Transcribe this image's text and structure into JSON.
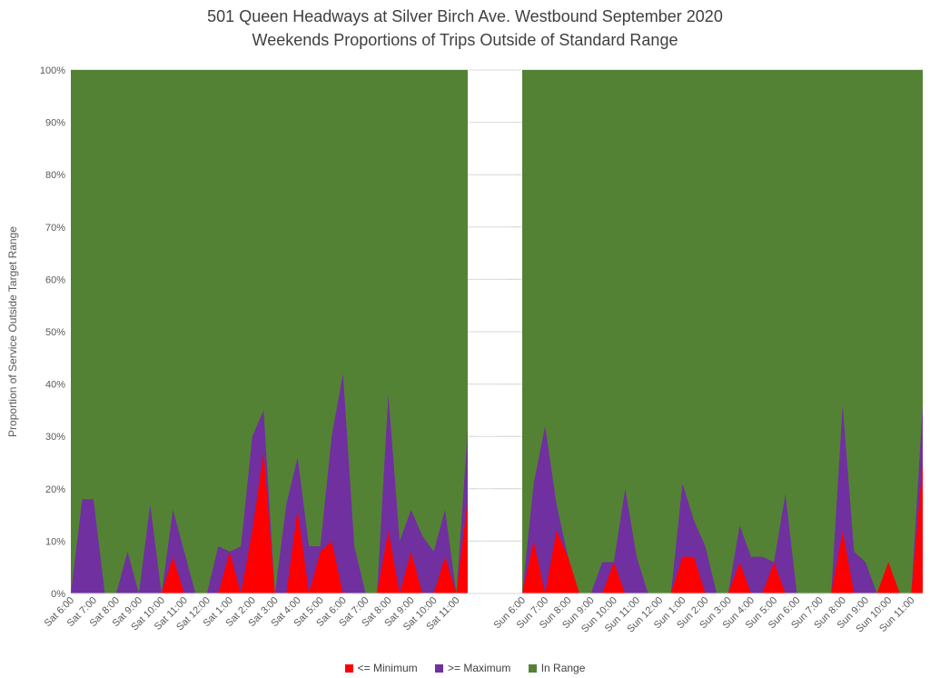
{
  "title_line1": "501 Queen Headways at Silver Birch Ave. Westbound September 2020",
  "title_line2": "Weekends Proportions of Trips Outside of Standard Range",
  "colors": {
    "minimum": "#ff0000",
    "maximum": "#7030a0",
    "in_range": "#548235",
    "grid": "#d9d9d9",
    "axis_text": "#595959"
  },
  "chart_data": {
    "type": "area",
    "stacked": true,
    "ylabel": "Proportion of Service Outside Target Range",
    "yticks": [
      "0%",
      "10%",
      "20%",
      "30%",
      "40%",
      "50%",
      "60%",
      "70%",
      "80%",
      "90%",
      "100%"
    ],
    "ylim": [
      0,
      100
    ],
    "grid": true,
    "legend_position": "bottom",
    "gap_after_category_index": 35,
    "categories": [
      "Sat 6:00",
      "Sat 6:30",
      "Sat 7:00",
      "Sat 7:30",
      "Sat 8:00",
      "Sat 8:30",
      "Sat 9:00",
      "Sat 9:30",
      "Sat 10:00",
      "Sat 10:30",
      "Sat 11:00",
      "Sat 11:30",
      "Sat 12:00",
      "Sat 12:30",
      "Sat 1:00",
      "Sat 1:30",
      "Sat 2:00",
      "Sat 2:30",
      "Sat 3:00",
      "Sat 3:30",
      "Sat 4:00",
      "Sat 4:30",
      "Sat 5:00",
      "Sat 5:30",
      "Sat 6:00",
      "Sat 6:30",
      "Sat 7:00",
      "Sat 7:30",
      "Sat 8:00",
      "Sat 8:30",
      "Sat 9:00",
      "Sat 9:30",
      "Sat 10:00",
      "Sat 10:30",
      "Sat 11:00",
      "Sat 11:30",
      "Sun 6:00",
      "Sun 6:30",
      "Sun 7:00",
      "Sun 7:30",
      "Sun 8:00",
      "Sun 8:30",
      "Sun 9:00",
      "Sun 9:30",
      "Sun 10:00",
      "Sun 10:30",
      "Sun 11:00",
      "Sun 11:30",
      "Sun 12:00",
      "Sun 12:30",
      "Sun 1:00",
      "Sun 1:30",
      "Sun 2:00",
      "Sun 2:30",
      "Sun 3:00",
      "Sun 3:30",
      "Sun 4:00",
      "Sun 4:30",
      "Sun 5:00",
      "Sun 5:30",
      "Sun 6:00",
      "Sun 6:30",
      "Sun 7:00",
      "Sun 7:30",
      "Sun 8:00",
      "Sun 8:30",
      "Sun 9:00",
      "Sun 9:30",
      "Sun 10:00",
      "Sun 10:30",
      "Sun 11:00",
      "Sun 11:30"
    ],
    "tick_labels": [
      "Sat 6:00",
      "Sat 7:00",
      "Sat 8:00",
      "Sat 9:00",
      "Sat 10:00",
      "Sat 11:00",
      "Sat 12:00",
      "Sat 1:00",
      "Sat 2:00",
      "Sat 3:00",
      "Sat 4:00",
      "Sat 5:00",
      "Sat 6:00",
      "Sat 7:00",
      "Sat 8:00",
      "Sat 9:00",
      "Sat 10:00",
      "Sat 11:00",
      "Sun 6:00",
      "Sun 7:00",
      "Sun 8:00",
      "Sun 9:00",
      "Sun 10:00",
      "Sun 11:00",
      "Sun 12:00",
      "Sun 1:00",
      "Sun 2:00",
      "Sun 3:00",
      "Sun 4:00",
      "Sun 5:00",
      "Sun 6:00",
      "Sun 7:00",
      "Sun 8:00",
      "Sun 9:00",
      "Sun 10:00",
      "Sun 11:00"
    ],
    "series": [
      {
        "name": "<=  Minimum",
        "color_key": "minimum",
        "values": [
          0,
          0,
          0,
          0,
          0,
          0,
          0,
          0,
          0,
          7,
          0,
          0,
          0,
          0,
          8,
          0,
          12,
          27,
          0,
          0,
          16,
          0,
          8,
          10,
          0,
          0,
          0,
          0,
          12,
          0,
          8,
          0,
          0,
          7,
          0,
          18,
          0,
          10,
          0,
          12,
          7,
          0,
          0,
          0,
          6,
          0,
          0,
          0,
          0,
          0,
          7,
          7,
          0,
          0,
          0,
          6,
          0,
          0,
          6,
          0,
          0,
          0,
          0,
          0,
          12,
          0,
          0,
          0,
          6,
          0,
          0,
          25
        ]
      },
      {
        "name": ">= Maximum",
        "color_key": "maximum",
        "values": [
          0,
          18,
          18,
          0,
          0,
          8,
          0,
          17,
          0,
          9,
          8,
          0,
          0,
          9,
          0,
          9,
          18,
          8,
          0,
          17,
          10,
          9,
          1,
          20,
          42,
          9,
          0,
          0,
          26,
          10,
          8,
          11,
          8,
          9,
          0,
          13,
          0,
          11,
          32,
          5,
          0,
          0,
          0,
          6,
          0,
          20,
          7,
          0,
          0,
          0,
          14,
          7,
          9,
          0,
          0,
          7,
          7,
          7,
          0,
          19,
          0,
          0,
          0,
          0,
          24,
          8,
          6,
          0,
          0,
          0,
          0,
          11
        ]
      },
      {
        "name": "In Range",
        "color_key": "in_range",
        "values": "remainder to 100%"
      }
    ]
  }
}
